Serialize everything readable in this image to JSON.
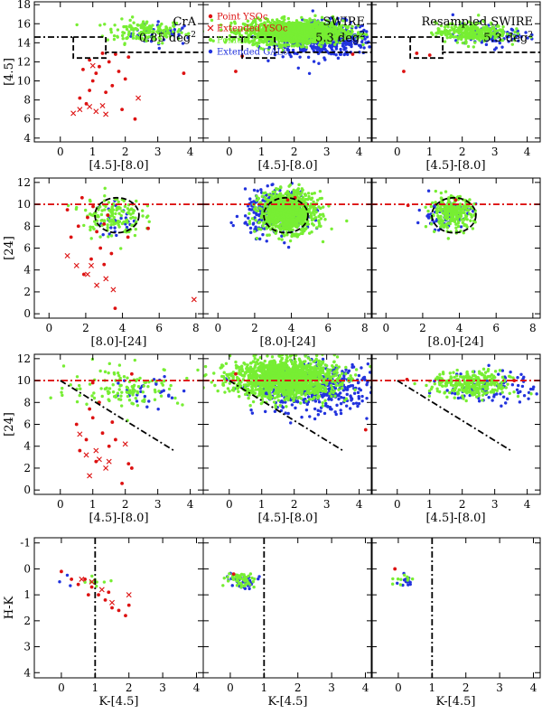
{
  "figure": {
    "column_titles": [
      {
        "name": "CrA",
        "area": "0.85 deg",
        "unit_sup": "2"
      },
      {
        "name": "SWIRE",
        "area": "5.3 deg",
        "unit_sup": "2"
      },
      {
        "name": "Resampled SWIRE",
        "area": "5.3 deg",
        "unit_sup": "2"
      }
    ],
    "legend": [
      {
        "label": "Point YSOc",
        "marker": "dot",
        "color": "#dd1111"
      },
      {
        "label": "Extended YSOc",
        "marker": "cross",
        "color": "#dd1111"
      },
      {
        "label": "Point GALc",
        "marker": "dot",
        "color": "#77ee33"
      },
      {
        "label": "Extended GALc",
        "marker": "dot",
        "color": "#2233dd"
      }
    ],
    "colors": {
      "yso": "#dd1111",
      "gal_point": "#77ee33",
      "gal_ext": "#2233dd",
      "cut_line_red": "#dd1111",
      "cut_line_black": "#000000"
    }
  },
  "chart_data": [
    {
      "type": "scatter",
      "row": 1,
      "xlabel": "[4.5]-[8.0]",
      "ylabel": "[4.5]",
      "xlim": [
        -0.8,
        4.4
      ],
      "ylim": [
        18.3,
        3.6
      ],
      "y_inverted": true,
      "xticks": [
        "0",
        "1",
        "2",
        "3",
        "4"
      ],
      "yticks": [
        "4",
        "6",
        "8",
        "10",
        "12",
        "14",
        "16",
        "18"
      ],
      "cuts": [
        {
          "style": "dash-dot",
          "color": "black",
          "points": [
            [
              -0.8,
              14.6
            ],
            [
              0.4,
              14.6
            ]
          ]
        },
        {
          "style": "dash",
          "color": "black",
          "points": [
            [
              0.4,
              14.6
            ],
            [
              0.4,
              12.4
            ],
            [
              1.4,
              12.4
            ],
            [
              1.4,
              13.0
            ],
            [
              4.4,
              13.0
            ]
          ]
        },
        {
          "style": "dash",
          "color": "black",
          "points": [
            [
              0.4,
              14.6
            ],
            [
              1.4,
              14.6
            ],
            [
              1.4,
              13.0
            ]
          ]
        }
      ],
      "panels": [
        {
          "field": "CrA",
          "yso_point": [
            [
              0.6,
              8.2
            ],
            [
              0.8,
              7.6
            ],
            [
              0.9,
              9.0
            ],
            [
              1.0,
              10.0
            ],
            [
              1.1,
              10.8
            ],
            [
              1.2,
              11.5
            ],
            [
              1.4,
              8.8
            ],
            [
              1.5,
              12.0
            ],
            [
              1.6,
              9.5
            ],
            [
              1.7,
              12.8
            ],
            [
              1.8,
              11.0
            ],
            [
              1.9,
              7.0
            ],
            [
              2.0,
              10.2
            ],
            [
              2.1,
              12.5
            ],
            [
              2.3,
              6.0
            ],
            [
              3.8,
              10.8
            ],
            [
              0.7,
              11.2
            ],
            [
              1.3,
              12.9
            ],
            [
              0.9,
              12.2
            ]
          ],
          "yso_ext": [
            [
              0.4,
              6.6
            ],
            [
              0.6,
              7.0
            ],
            [
              0.9,
              7.3
            ],
            [
              1.1,
              6.8
            ],
            [
              1.3,
              7.4
            ],
            [
              1.4,
              6.5
            ],
            [
              2.4,
              8.2
            ],
            [
              1.0,
              11.6
            ]
          ],
          "gal_point_cloud": {
            "cx": 2.6,
            "cy": 15.2,
            "sx": 0.6,
            "sy": 0.6,
            "n": 150
          },
          "gal_ext_cloud": {
            "cx": 3.2,
            "cy": 15.0,
            "sx": 0.5,
            "sy": 0.6,
            "n": 40
          }
        },
        {
          "field": "SWIRE",
          "gal_point_cloud": {
            "cx": 2.0,
            "cy": 15.1,
            "sx": 0.75,
            "sy": 0.6,
            "n": 1400
          },
          "gal_ext_cloud": {
            "cx": 2.9,
            "cy": 14.4,
            "sx": 0.75,
            "sy": 0.9,
            "n": 500
          },
          "yso_point": [
            [
              0.2,
              11.0
            ],
            [
              0.4,
              12.6
            ],
            [
              3.8,
              12.8
            ]
          ]
        },
        {
          "field": "Resampled SWIRE",
          "gal_point_cloud": {
            "cx": 2.3,
            "cy": 15.1,
            "sx": 0.55,
            "sy": 0.5,
            "n": 300
          },
          "gal_ext_cloud": {
            "cx": 2.9,
            "cy": 14.8,
            "sx": 0.6,
            "sy": 0.6,
            "n": 90
          },
          "yso_point": [
            [
              0.2,
              11.0
            ],
            [
              0.6,
              12.9
            ],
            [
              1.0,
              12.7
            ]
          ]
        }
      ]
    },
    {
      "type": "scatter",
      "row": 2,
      "xlabel": "[8.0]-[24]",
      "ylabel": "[24]",
      "xlim": [
        -0.8,
        8.4
      ],
      "ylim": [
        12.4,
        -0.4
      ],
      "y_inverted": true,
      "xticks": [
        "0",
        "2",
        "4",
        "6",
        "8"
      ],
      "yticks": [
        "0",
        "2",
        "4",
        "6",
        "8",
        "10",
        "12"
      ],
      "cuts": [
        {
          "style": "dash-dot",
          "color": "red",
          "points": [
            [
              -0.8,
              10.0
            ],
            [
              8.4,
              10.0
            ]
          ]
        },
        {
          "style": "ellipse-dash",
          "color": "black",
          "cx": 3.7,
          "cy": 9.0,
          "rx": 1.2,
          "ry": 1.6
        }
      ],
      "panels": [
        {
          "field": "CrA",
          "yso_point": [
            [
              1.2,
              7.0
            ],
            [
              1.6,
              8.0
            ],
            [
              1.9,
              3.6
            ],
            [
              2.1,
              8.8
            ],
            [
              2.3,
              5.0
            ],
            [
              2.6,
              7.5
            ],
            [
              2.8,
              6.0
            ],
            [
              3.0,
              4.5
            ],
            [
              3.2,
              9.0
            ],
            [
              3.4,
              5.5
            ],
            [
              3.6,
              0.5
            ],
            [
              3.0,
              8.2
            ],
            [
              4.3,
              7.0
            ],
            [
              5.4,
              7.8
            ],
            [
              2.4,
              9.8
            ],
            [
              1.8,
              10.6
            ],
            [
              1.0,
              9.5
            ]
          ],
          "yso_ext": [
            [
              1.0,
              5.3
            ],
            [
              1.5,
              4.4
            ],
            [
              2.1,
              3.6
            ],
            [
              2.6,
              2.6
            ],
            [
              3.1,
              3.2
            ],
            [
              3.5,
              2.2
            ],
            [
              7.9,
              1.3
            ],
            [
              2.3,
              4.4
            ]
          ],
          "gal_point_cloud": {
            "cx": 3.4,
            "cy": 9.0,
            "sx": 0.8,
            "sy": 1.0,
            "n": 140
          },
          "gal_ext_cloud": {
            "cx": 3.9,
            "cy": 8.6,
            "sx": 0.6,
            "sy": 0.8,
            "n": 30
          }
        },
        {
          "field": "SWIRE",
          "gal_point_cloud": {
            "cx": 3.8,
            "cy": 9.3,
            "sx": 0.75,
            "sy": 0.9,
            "n": 1000
          },
          "gal_ext_cloud": {
            "cx": 3.3,
            "cy": 9.2,
            "sx": 0.9,
            "sy": 1.0,
            "n": 350
          },
          "yso_point": [
            [
              3.8,
              10.4
            ],
            [
              4.2,
              10.6
            ]
          ]
        },
        {
          "field": "Resampled SWIRE",
          "gal_point_cloud": {
            "cx": 3.6,
            "cy": 9.2,
            "sx": 0.6,
            "sy": 0.7,
            "n": 260
          },
          "gal_ext_cloud": {
            "cx": 3.2,
            "cy": 9.1,
            "sx": 0.7,
            "sy": 0.7,
            "n": 80
          },
          "yso_point": [
            [
              1.2,
              9.9
            ],
            [
              3.8,
              10.4
            ]
          ]
        }
      ]
    },
    {
      "type": "scatter",
      "row": 3,
      "xlabel": "[4.5]-[8.0]",
      "ylabel": "[24]",
      "xlim": [
        -0.8,
        4.4
      ],
      "ylim": [
        12.4,
        -0.4
      ],
      "y_inverted": true,
      "xticks": [
        "0",
        "1",
        "2",
        "3",
        "4"
      ],
      "yticks": [
        "0",
        "2",
        "4",
        "6",
        "8",
        "10",
        "12"
      ],
      "cuts": [
        {
          "style": "dash-dot",
          "color": "red",
          "points": [
            [
              -0.8,
              10.0
            ],
            [
              4.4,
              10.0
            ]
          ]
        },
        {
          "style": "dash-dot",
          "color": "black",
          "points": [
            [
              0.0,
              10.0
            ],
            [
              3.5,
              3.6
            ]
          ]
        }
      ],
      "panels": [
        {
          "field": "CrA",
          "yso_point": [
            [
              0.6,
              3.6
            ],
            [
              0.8,
              4.6
            ],
            [
              1.0,
              6.6
            ],
            [
              1.1,
              2.6
            ],
            [
              1.3,
              5.2
            ],
            [
              1.5,
              4.0
            ],
            [
              1.6,
              6.2
            ],
            [
              1.7,
              4.6
            ],
            [
              1.9,
              0.6
            ],
            [
              2.1,
              2.4
            ],
            [
              2.2,
              2.0
            ],
            [
              0.9,
              7.4
            ],
            [
              1.2,
              8.0
            ],
            [
              0.5,
              6.0
            ],
            [
              2.2,
              10.6
            ],
            [
              1.0,
              9.8
            ]
          ],
          "yso_ext": [
            [
              0.6,
              5.1
            ],
            [
              0.8,
              3.2
            ],
            [
              0.9,
              1.3
            ],
            [
              1.1,
              3.6
            ],
            [
              1.2,
              2.8
            ],
            [
              1.4,
              2.0
            ],
            [
              1.5,
              2.6
            ],
            [
              2.0,
              4.2
            ]
          ],
          "gal_point_cloud": {
            "cx": 2.0,
            "cy": 9.4,
            "sx": 0.9,
            "sy": 0.9,
            "n": 120
          },
          "gal_ext_cloud": {
            "cx": 2.8,
            "cy": 9.0,
            "sx": 0.6,
            "sy": 0.8,
            "n": 30
          }
        },
        {
          "field": "SWIRE",
          "gal_point_cloud": {
            "cx": 1.7,
            "cy": 10.2,
            "sx": 0.8,
            "sy": 0.9,
            "n": 1400
          },
          "gal_ext_cloud": {
            "cx": 2.6,
            "cy": 9.2,
            "sx": 0.9,
            "sy": 1.1,
            "n": 450
          },
          "yso_point": [
            [
              4.2,
              5.5
            ],
            [
              0.2,
              10.6
            ]
          ]
        },
        {
          "field": "Resampled SWIRE",
          "gal_point_cloud": {
            "cx": 2.3,
            "cy": 9.6,
            "sx": 0.6,
            "sy": 0.6,
            "n": 300
          },
          "gal_ext_cloud": {
            "cx": 2.9,
            "cy": 9.4,
            "sx": 0.7,
            "sy": 0.8,
            "n": 90
          },
          "yso_point": [
            [
              0.3,
              10.1
            ],
            [
              3.6,
              10.0
            ]
          ]
        }
      ]
    },
    {
      "type": "scatter",
      "row": 4,
      "xlabel": "K-[4.5]",
      "ylabel": "H-K",
      "xlim": [
        -0.8,
        4.2
      ],
      "ylim": [
        -1.2,
        4.2
      ],
      "y_inverted": false,
      "xticks": [
        "0",
        "1",
        "2",
        "3",
        "4"
      ],
      "yticks": [
        "-1",
        "0",
        "1",
        "2",
        "3",
        "4"
      ],
      "cuts": [
        {
          "style": "dash-dot",
          "color": "black",
          "points": [
            [
              1.0,
              -1.2
            ],
            [
              1.0,
              4.2
            ]
          ]
        }
      ],
      "panels": [
        {
          "field": "CrA",
          "yso_point": [
            [
              0.0,
              0.1
            ],
            [
              0.3,
              0.4
            ],
            [
              0.5,
              0.6
            ],
            [
              0.7,
              0.4
            ],
            [
              0.9,
              0.7
            ],
            [
              1.1,
              1.0
            ],
            [
              1.3,
              1.2
            ],
            [
              1.5,
              1.5
            ],
            [
              1.7,
              1.6
            ],
            [
              1.9,
              1.8
            ],
            [
              2.0,
              1.4
            ],
            [
              1.4,
              0.9
            ],
            [
              0.8,
              1.0
            ]
          ],
          "yso_ext": [
            [
              0.9,
              0.5
            ],
            [
              1.2,
              0.8
            ],
            [
              1.5,
              1.3
            ],
            [
              2.0,
              1.0
            ],
            [
              0.6,
              0.4
            ]
          ],
          "gal_point_cloud": {
            "cx": 0.9,
            "cy": 0.5,
            "sx": 0.2,
            "sy": 0.15,
            "n": 10
          },
          "gal_ext_cloud": {
            "cx": 0.3,
            "cy": 0.5,
            "sx": 0.15,
            "sy": 0.15,
            "n": 3
          }
        },
        {
          "field": "SWIRE",
          "gal_point_cloud": {
            "cx": 0.3,
            "cy": 0.4,
            "sx": 0.2,
            "sy": 0.15,
            "n": 50
          },
          "gal_ext_cloud": {
            "cx": 0.3,
            "cy": 0.45,
            "sx": 0.2,
            "sy": 0.15,
            "n": 40
          },
          "yso_point": [
            [
              0.1,
              0.2
            ]
          ]
        },
        {
          "field": "Resampled SWIRE",
          "gal_point_cloud": {
            "cx": 0.2,
            "cy": 0.4,
            "sx": 0.15,
            "sy": 0.1,
            "n": 10
          },
          "gal_ext_cloud": {
            "cx": 0.25,
            "cy": 0.5,
            "sx": 0.15,
            "sy": 0.15,
            "n": 14
          },
          "yso_point": [
            [
              -0.1,
              0.0
            ]
          ]
        }
      ]
    }
  ]
}
